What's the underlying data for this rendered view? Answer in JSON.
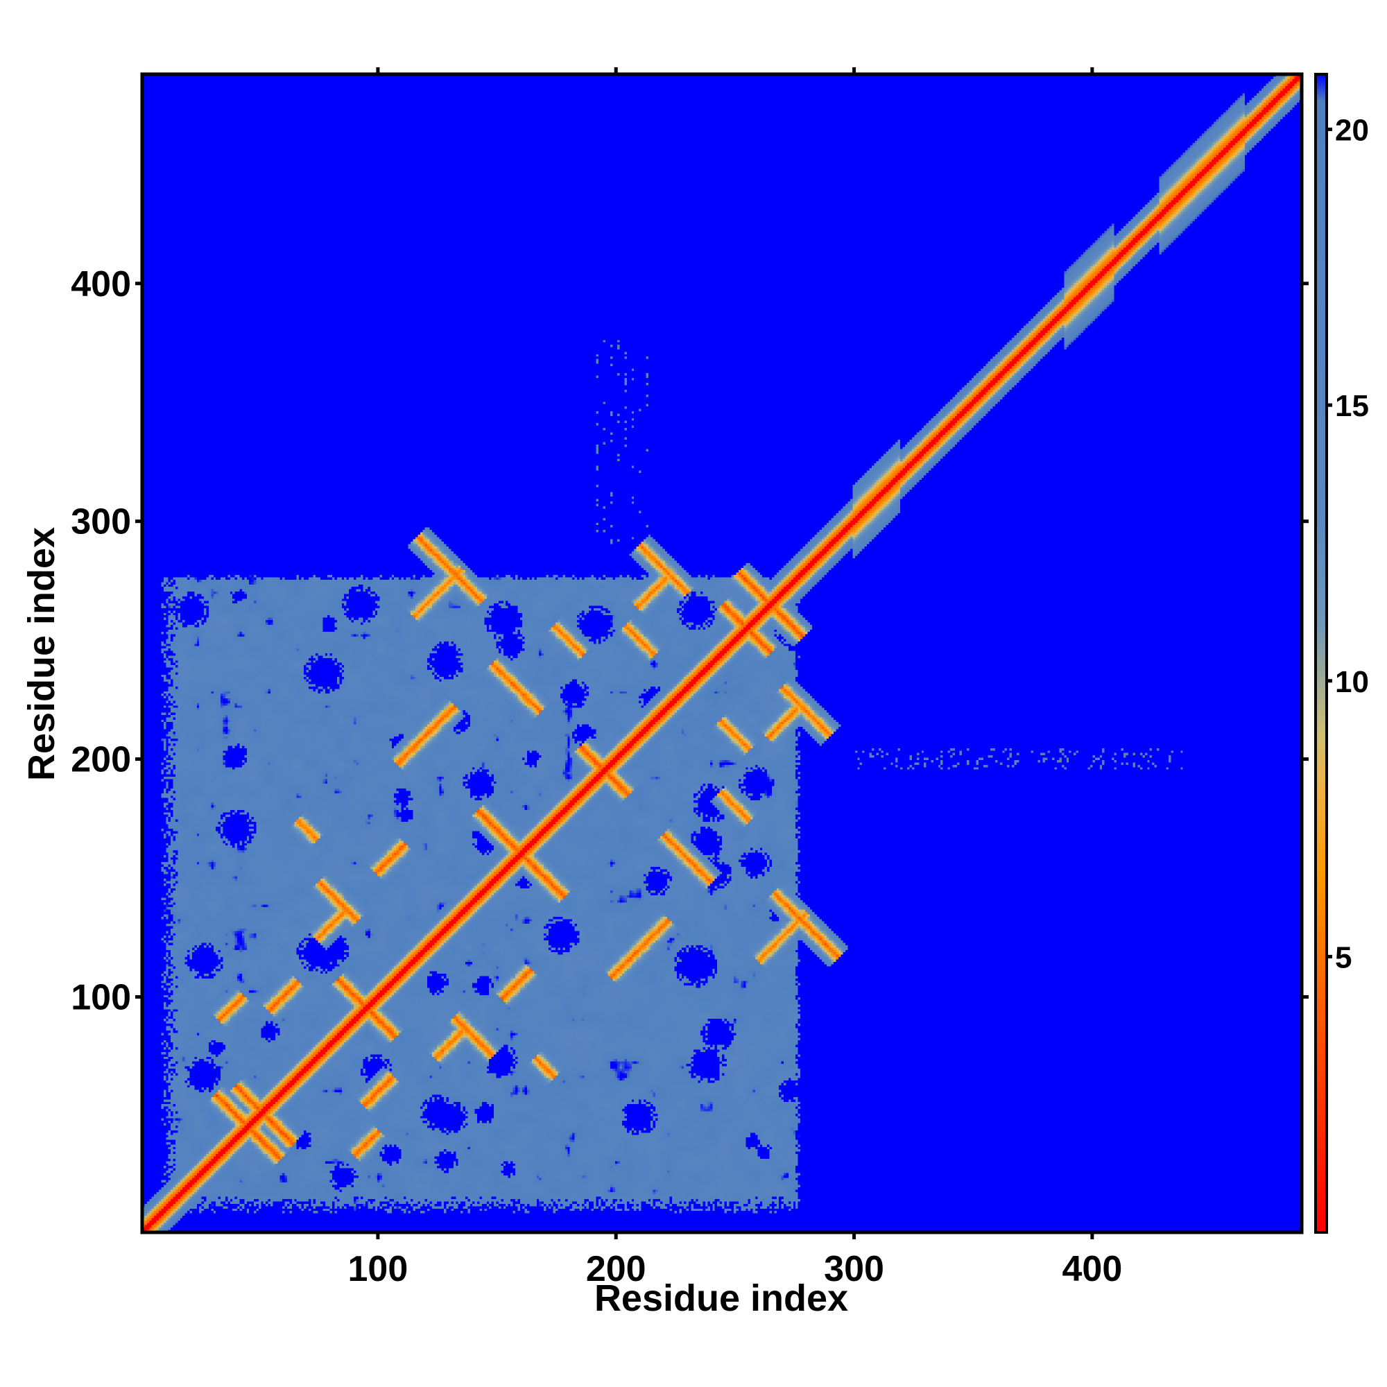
{
  "chart_data": {
    "type": "heatmap",
    "title": "",
    "xlabel": "Residue index",
    "ylabel": "Residue index",
    "n_residues": 488,
    "xlim": [
      1,
      488
    ],
    "ylim": [
      1,
      488
    ],
    "x_ticks": [
      100,
      200,
      300,
      400
    ],
    "y_ticks": [
      100,
      200,
      300,
      400
    ],
    "colorbar": {
      "ticks": [
        5,
        10,
        15,
        20
      ],
      "range": [
        0,
        21
      ],
      "colors": [
        {
          "value": 0,
          "color": "#ff0000"
        },
        {
          "value": 4,
          "color": "#ff5a00"
        },
        {
          "value": 6.5,
          "color": "#ff9900"
        },
        {
          "value": 8,
          "color": "#f0b040"
        },
        {
          "value": 9,
          "color": "#cfc070"
        },
        {
          "value": 11,
          "color": "#6f98b8"
        },
        {
          "value": 13,
          "color": "#5b87c0"
        },
        {
          "value": 20.5,
          "color": "#5080c0"
        },
        {
          "value": 21,
          "color": "#0000ff"
        }
      ]
    },
    "regions": {
      "compact_domain": [
        1,
        300
      ],
      "diagonal_blobs_center": [
        305,
        320,
        400,
        440,
        455
      ],
      "extended_tail": [
        300,
        488
      ]
    },
    "grid": false
  },
  "colors": {
    "background": "#0000ff",
    "domain": "#5b87c0",
    "diagonal": "#ff0000",
    "contact_ring": "#d6c36a",
    "contact_core": "#ff9900"
  },
  "axes": {
    "x_title": "Residue index",
    "y_title": "Residue index"
  }
}
